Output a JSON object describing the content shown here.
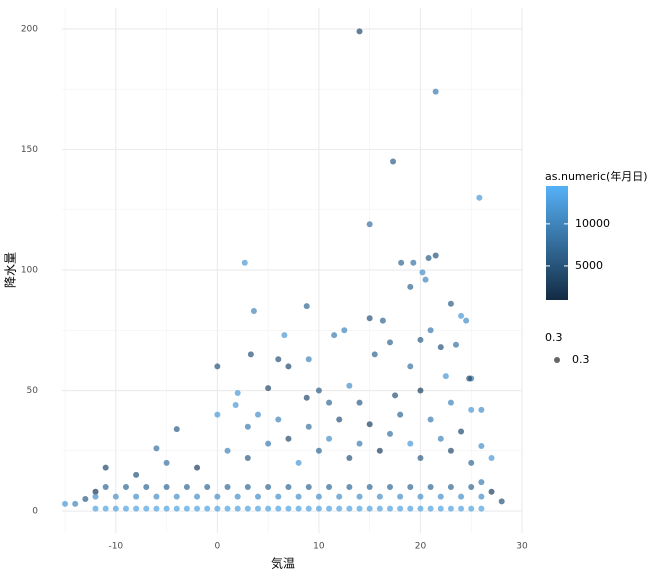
{
  "chart_data": {
    "type": "scatter",
    "x_label": "気温",
    "y_label": "降水量",
    "xlim": [
      -15.3,
      30
    ],
    "xticks": [
      -10,
      0,
      10,
      20,
      30
    ],
    "ylim": [
      -9.1,
      208.7
    ],
    "yticks": [
      0,
      50,
      100,
      150,
      200
    ],
    "grid": true,
    "color_legend": {
      "title": "as.numeric(年月日)",
      "colors": [
        "#132B43",
        "#56B1F7"
      ],
      "lim": [
        950,
        14500
      ],
      "ticks": [
        5000,
        10000
      ]
    },
    "alpha_legend": {
      "title": "0.3",
      "label": "0.3"
    },
    "point_color_note_free": true,
    "x": [
      14,
      21.5,
      17.3,
      25.8,
      15,
      2.7,
      21.5,
      20.8,
      18.1,
      19.3,
      20.2,
      20.5,
      19,
      23,
      8.8,
      3.6,
      24,
      24.5,
      15,
      16.3,
      12.5,
      11.5,
      6.6,
      21,
      20,
      17,
      22,
      23.5,
      3.3,
      6,
      9,
      15.5,
      7,
      0,
      19,
      25,
      22.5,
      24.8,
      13,
      5,
      10,
      2,
      1.8,
      8.8,
      0,
      4,
      11,
      14,
      17.5,
      20,
      23,
      25,
      26,
      -4,
      -6,
      -11,
      3,
      6,
      9,
      12,
      15,
      18,
      21,
      24,
      26,
      27,
      -8,
      -5,
      -2,
      1,
      3,
      5,
      7,
      8,
      10,
      11,
      13,
      14,
      16,
      17,
      19,
      20,
      22,
      23,
      25,
      26,
      27,
      28,
      -13,
      -14,
      -15,
      -12,
      -12,
      -11,
      -10,
      -9,
      -8,
      -7,
      -6,
      -5,
      -4,
      -3,
      -2,
      -1,
      0,
      1,
      2,
      3,
      4,
      5,
      6,
      7,
      8,
      9,
      10,
      11,
      12,
      13,
      14,
      15,
      16,
      17,
      18,
      19,
      20,
      21,
      22,
      23,
      24,
      25,
      26,
      -12,
      -11,
      -10,
      -9,
      -8,
      -7,
      -6,
      -5,
      -4,
      -3,
      -2,
      -1,
      0,
      1,
      2,
      3,
      4,
      5,
      6,
      7,
      8,
      9,
      10,
      11,
      12,
      13,
      14,
      15,
      16,
      17,
      18,
      19,
      20,
      21,
      22,
      23,
      24,
      25,
      26
    ],
    "values": [
      199,
      174,
      145,
      130,
      119,
      103,
      106,
      105,
      103,
      103,
      99,
      96,
      93,
      86,
      85,
      83,
      81,
      79,
      80,
      79,
      75,
      73,
      73,
      75,
      71,
      70,
      68,
      69,
      65,
      63,
      63,
      65,
      60,
      60,
      60,
      55,
      56,
      55,
      52,
      51,
      50,
      49,
      44,
      47,
      40,
      40,
      45,
      45,
      48,
      50,
      45,
      42,
      42,
      34,
      26,
      18,
      35,
      38,
      35,
      38,
      36,
      40,
      38,
      33,
      27,
      22,
      15,
      20,
      18,
      25,
      22,
      28,
      30,
      20,
      25,
      30,
      22,
      28,
      25,
      32,
      28,
      22,
      30,
      25,
      20,
      12,
      8,
      4,
      5,
      3,
      3,
      8,
      1,
      1,
      1,
      1,
      1,
      1,
      1,
      1,
      1,
      1,
      1,
      1,
      1,
      1,
      1,
      1,
      1,
      1,
      1,
      1,
      1,
      1,
      1,
      1,
      1,
      1,
      1,
      1,
      1,
      1,
      1,
      1,
      1,
      1,
      1,
      1,
      1,
      1,
      1,
      6,
      10,
      6,
      10,
      6,
      10,
      6,
      10,
      6,
      10,
      6,
      10,
      6,
      10,
      6,
      10,
      6,
      10,
      6,
      10,
      6,
      10,
      6,
      10,
      6,
      10,
      6,
      10,
      6,
      10,
      6,
      10,
      6,
      10,
      6,
      10,
      6,
      10,
      6
    ],
    "color_values": [
      4000,
      9000,
      6000,
      12000,
      8000,
      12000,
      5000,
      6000,
      7000,
      8000,
      11000,
      10000,
      7000,
      6000,
      7000,
      10000,
      12000,
      11000,
      5000,
      7000,
      10000,
      9000,
      12000,
      9000,
      6000,
      7000,
      5000,
      8000,
      5000,
      5000,
      10000,
      7000,
      4000,
      5000,
      8000,
      9000,
      12000,
      4000,
      11000,
      4000,
      6000,
      12000,
      12000,
      4000,
      12000,
      11000,
      7000,
      6000,
      5000,
      3000,
      10000,
      12000,
      11000,
      6000,
      8000,
      4000,
      9000,
      10000,
      8000,
      5000,
      3000,
      7000,
      9000,
      4000,
      11000,
      12000,
      5000,
      8000,
      3000,
      10000,
      6000,
      9000,
      4000,
      12000,
      7000,
      11000,
      5000,
      9000,
      3000,
      8000,
      12000,
      6000,
      10000,
      4000,
      7000,
      9000,
      3000,
      5000,
      6000,
      10000,
      12000,
      2000,
      13000,
      13000,
      13000,
      13000,
      13000,
      13000,
      13000,
      13000,
      13000,
      13000,
      13000,
      13000,
      13000,
      13000,
      13000,
      13000,
      13000,
      13000,
      13000,
      13000,
      13000,
      13000,
      13000,
      13000,
      13000,
      13000,
      13000,
      13000,
      13000,
      13000,
      13000,
      13000,
      13000,
      13000,
      13000,
      13000,
      13000,
      13000,
      13000,
      11000,
      7000,
      11000,
      7000,
      11000,
      7000,
      11000,
      7000,
      11000,
      7000,
      11000,
      7000,
      11000,
      7000,
      11000,
      7000,
      11000,
      7000,
      11000,
      7000,
      11000,
      7000,
      11000,
      7000,
      11000,
      7000,
      11000,
      7000,
      11000,
      7000,
      11000,
      7000,
      11000,
      7000,
      11000,
      7000,
      11000,
      7000,
      11000
    ]
  }
}
